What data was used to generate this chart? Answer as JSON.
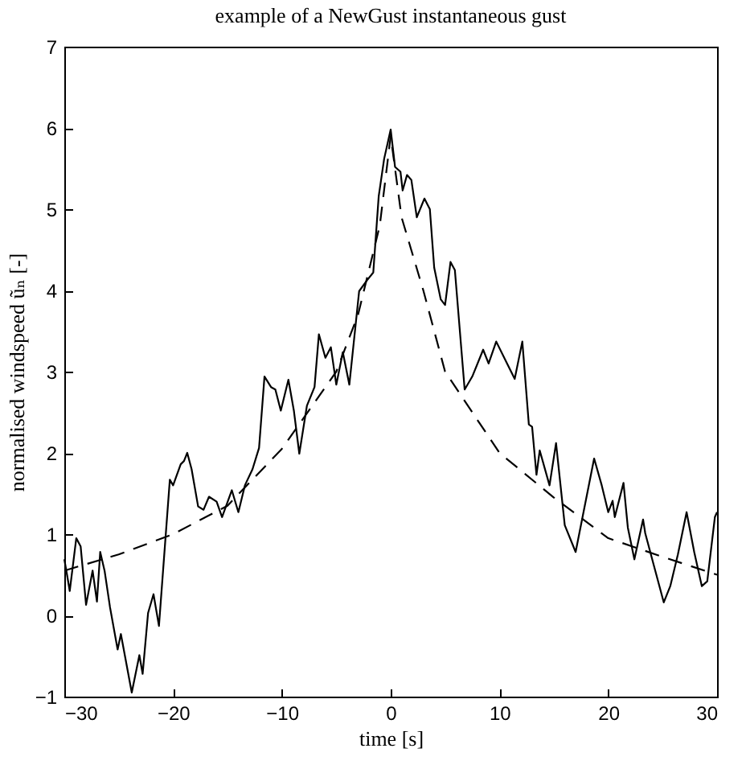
{
  "chart_data": {
    "type": "line",
    "title": "example of a NewGust instantaneous gust",
    "xlabel": "time [s]",
    "ylabel": "normalised windspeed ũₙ [-]",
    "xlim": [
      -30,
      30
    ],
    "xticks": [
      -30,
      -20,
      -10,
      0,
      10,
      20,
      30
    ],
    "ylim": [
      -1,
      7
    ],
    "yticks": [
      -1,
      0,
      1,
      2,
      3,
      4,
      5,
      6,
      7
    ],
    "grid": false,
    "series": [
      {
        "color": "#000000",
        "line_style": "solid",
        "x": [
          -30,
          -29.75,
          -29.5,
          -28.9,
          -28.5,
          -28,
          -27.4,
          -27,
          -26.7,
          -26.3,
          -25.8,
          -25.1,
          -24.8,
          -23.8,
          -23.1,
          -22.8,
          -22.3,
          -21.8,
          -21.3,
          -20.3,
          -20,
          -19.3,
          -19,
          -18.7,
          -18.3,
          -17.7,
          -17.2,
          -16.7,
          -16,
          -15.5,
          -14.6,
          -14,
          -13.4,
          -12.7,
          -12.1,
          -11.6,
          -11,
          -10.6,
          -10.1,
          -9.4,
          -8.9,
          -8.4,
          -7.7,
          -7,
          -6.6,
          -6,
          -5.5,
          -5,
          -4.4,
          -3.8,
          -2.9,
          -2.2,
          -1.6,
          -1.1,
          -0.6,
          0,
          0.4,
          0.9,
          1.1,
          1.5,
          1.9,
          2.4,
          3.1,
          3.6,
          4,
          4.6,
          5,
          5.5,
          5.9,
          6.8,
          7.5,
          8.5,
          9,
          9.7,
          10.7,
          11.4,
          12.1,
          12.7,
          13,
          13.4,
          13.7,
          14.6,
          15.2,
          16,
          17,
          18.7,
          19.4,
          20,
          20.4,
          20.6,
          21.4,
          21.8,
          22.4,
          23.2,
          23.4,
          24.3,
          25.1,
          25.7,
          26.4,
          27.2,
          27.9,
          28.6,
          29.1,
          29.8,
          30
        ],
        "values": [
          0.69,
          0.5,
          0.3,
          0.95,
          0.85,
          0.13,
          0.55,
          0.17,
          0.78,
          0.55,
          0.1,
          -0.42,
          -0.23,
          -0.95,
          -0.49,
          -0.72,
          0.03,
          0.26,
          -0.13,
          1.67,
          1.6,
          1.86,
          1.9,
          2.0,
          1.8,
          1.34,
          1.3,
          1.46,
          1.4,
          1.21,
          1.54,
          1.27,
          1.6,
          1.8,
          2.06,
          2.94,
          2.81,
          2.78,
          2.52,
          2.9,
          2.52,
          1.99,
          2.58,
          2.81,
          3.46,
          3.17,
          3.3,
          2.84,
          3.24,
          2.84,
          3.99,
          4.12,
          4.22,
          5.16,
          5.62,
          5.98,
          5.52,
          5.46,
          5.23,
          5.42,
          5.36,
          4.9,
          5.13,
          5.0,
          4.28,
          3.89,
          3.82,
          4.35,
          4.25,
          2.78,
          2.94,
          3.27,
          3.1,
          3.37,
          3.1,
          2.91,
          3.37,
          2.35,
          2.32,
          1.73,
          2.03,
          1.6,
          2.12,
          1.11,
          0.78,
          1.93,
          1.6,
          1.27,
          1.41,
          1.21,
          1.63,
          1.08,
          0.69,
          1.18,
          1.01,
          0.56,
          0.16,
          0.36,
          0.75,
          1.27,
          0.78,
          0.36,
          0.42,
          1.21,
          1.27
        ]
      },
      {
        "color": "#000000",
        "line_style": "dashed",
        "x": [
          -30,
          -25,
          -20,
          -15,
          -10,
          -5,
          -3,
          -1,
          0,
          1,
          3,
          5,
          10,
          15,
          20,
          25,
          30
        ],
        "values": [
          0.55,
          0.75,
          1.0,
          1.35,
          2.05,
          3.0,
          3.7,
          4.8,
          5.9,
          4.9,
          4.0,
          3.0,
          2.0,
          1.45,
          0.95,
          0.72,
          0.5
        ]
      }
    ]
  }
}
